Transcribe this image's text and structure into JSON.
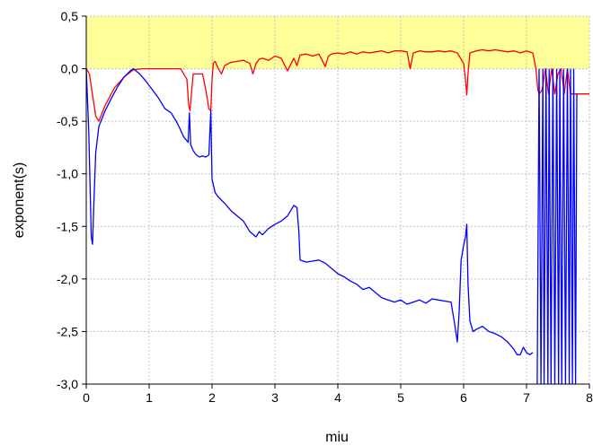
{
  "chart_data": {
    "type": "line",
    "title": "",
    "xlabel": "miu",
    "ylabel": "exponent(s)",
    "xlim": [
      0,
      8
    ],
    "ylim": [
      -3.0,
      0.5
    ],
    "xticks": [
      0,
      1,
      2,
      3,
      4,
      5,
      6,
      7,
      8
    ],
    "xtick_labels": [
      "0",
      "1",
      "2",
      "3",
      "4",
      "5",
      "6",
      "7",
      "8"
    ],
    "yticks": [
      0.5,
      0.0,
      -0.5,
      -1.0,
      -1.5,
      -2.0,
      -2.5,
      -3.0
    ],
    "ytick_labels": [
      "0,5",
      "0,0",
      "-0,5",
      "-1,0",
      "-1,5",
      "-2,0",
      "-2,5",
      "-3,0"
    ],
    "grid": true,
    "shaded_band": {
      "y_from": 0.0,
      "y_to": 0.5,
      "color": "#ffff99"
    },
    "colors": {
      "series_red": "#ff0000",
      "series_blue": "#0000ff",
      "grid": "#c0c0c0",
      "band": "#ffff99"
    },
    "series": [
      {
        "color": "#ff0000",
        "x": [
          0.0,
          0.05,
          0.1,
          0.15,
          0.2,
          0.3,
          0.45,
          0.6,
          0.75,
          0.9,
          1.1,
          1.3,
          1.5,
          1.6,
          1.63,
          1.65,
          1.67,
          1.7,
          1.85,
          1.9,
          1.95,
          1.98,
          2.0,
          2.02,
          2.05,
          2.1,
          2.15,
          2.2,
          2.3,
          2.4,
          2.5,
          2.6,
          2.65,
          2.7,
          2.75,
          2.8,
          2.9,
          3.0,
          3.1,
          3.2,
          3.3,
          3.35,
          3.4,
          3.5,
          3.6,
          3.7,
          3.8,
          3.85,
          3.9,
          4.0,
          4.1,
          4.2,
          4.3,
          4.4,
          4.5,
          4.6,
          4.7,
          4.8,
          4.9,
          5.0,
          5.1,
          5.15,
          5.2,
          5.3,
          5.4,
          5.5,
          5.6,
          5.7,
          5.8,
          5.9,
          6.0,
          6.03,
          6.05,
          6.07,
          6.1,
          6.2,
          6.3,
          6.4,
          6.5,
          6.6,
          6.7,
          6.8,
          6.9,
          7.0,
          7.1,
          7.15,
          7.18,
          7.2,
          7.25,
          7.3,
          7.35,
          7.4,
          7.45,
          7.5,
          7.55,
          7.6,
          7.65,
          7.7,
          7.75,
          7.8,
          7.9,
          8.0
        ],
        "y": [
          0.0,
          -0.05,
          -0.25,
          -0.45,
          -0.5,
          -0.35,
          -0.18,
          -0.08,
          -0.01,
          0.0,
          0.0,
          0.0,
          0.0,
          -0.1,
          -0.35,
          -0.4,
          -0.25,
          -0.05,
          -0.05,
          -0.2,
          -0.38,
          -0.4,
          -0.1,
          0.05,
          0.07,
          0.0,
          -0.05,
          0.03,
          0.06,
          0.07,
          0.08,
          0.05,
          -0.05,
          0.05,
          0.09,
          0.1,
          0.08,
          0.12,
          0.1,
          -0.02,
          0.1,
          0.03,
          0.13,
          0.14,
          0.12,
          0.14,
          0.02,
          0.12,
          0.14,
          0.15,
          0.14,
          0.16,
          0.14,
          0.16,
          0.15,
          0.16,
          0.17,
          0.15,
          0.17,
          0.17,
          0.16,
          0.0,
          0.15,
          0.17,
          0.16,
          0.16,
          0.17,
          0.16,
          0.17,
          0.15,
          0.05,
          -0.1,
          -0.25,
          -0.05,
          0.15,
          0.17,
          0.18,
          0.17,
          0.18,
          0.17,
          0.16,
          0.17,
          0.15,
          0.17,
          0.15,
          0.0,
          -0.2,
          -0.24,
          -0.2,
          0.0,
          -0.24,
          0.0,
          -0.24,
          -0.05,
          0.0,
          -0.24,
          0.0,
          -0.24,
          -0.24,
          -0.24,
          -0.24,
          -0.24
        ]
      },
      {
        "color": "#0000ff",
        "x": [
          0.0,
          0.04,
          0.08,
          0.1,
          0.12,
          0.15,
          0.2,
          0.3,
          0.4,
          0.5,
          0.6,
          0.7,
          0.75,
          0.85,
          0.95,
          1.05,
          1.15,
          1.25,
          1.35,
          1.45,
          1.55,
          1.62,
          1.64,
          1.66,
          1.7,
          1.75,
          1.8,
          1.85,
          1.9,
          1.95,
          1.98,
          2.0,
          2.05,
          2.1,
          2.2,
          2.3,
          2.4,
          2.5,
          2.6,
          2.7,
          2.75,
          2.8,
          2.9,
          3.0,
          3.1,
          3.2,
          3.3,
          3.35,
          3.38,
          3.4,
          3.5,
          3.6,
          3.7,
          3.8,
          3.9,
          4.0,
          4.1,
          4.2,
          4.3,
          4.4,
          4.5,
          4.6,
          4.7,
          4.8,
          4.9,
          5.0,
          5.1,
          5.2,
          5.3,
          5.4,
          5.5,
          5.6,
          5.7,
          5.8,
          5.85,
          5.9,
          5.93,
          5.96,
          6.0,
          6.03,
          6.05,
          6.07,
          6.1,
          6.15,
          6.2,
          6.3,
          6.4,
          6.5,
          6.6,
          6.7,
          6.8,
          6.85,
          6.9,
          6.95,
          7.0,
          7.05,
          7.1
        ],
        "y": [
          0.0,
          -0.6,
          -1.6,
          -1.67,
          -1.3,
          -0.8,
          -0.55,
          -0.4,
          -0.28,
          -0.17,
          -0.08,
          -0.02,
          0.0,
          -0.05,
          -0.12,
          -0.2,
          -0.28,
          -0.38,
          -0.42,
          -0.52,
          -0.65,
          -0.7,
          -0.42,
          -0.72,
          -0.78,
          -0.82,
          -0.84,
          -0.83,
          -0.84,
          -0.82,
          -0.4,
          -1.05,
          -1.18,
          -1.22,
          -1.28,
          -1.35,
          -1.4,
          -1.45,
          -1.55,
          -1.6,
          -1.55,
          -1.58,
          -1.52,
          -1.48,
          -1.45,
          -1.4,
          -1.3,
          -1.32,
          -1.55,
          -1.82,
          -1.84,
          -1.83,
          -1.82,
          -1.85,
          -1.9,
          -1.95,
          -1.98,
          -2.02,
          -2.05,
          -2.1,
          -2.08,
          -2.13,
          -2.18,
          -2.2,
          -2.22,
          -2.2,
          -2.24,
          -2.22,
          -2.2,
          -2.23,
          -2.19,
          -2.2,
          -2.21,
          -2.22,
          -2.4,
          -2.6,
          -2.3,
          -1.82,
          -1.68,
          -1.6,
          -1.48,
          -2.05,
          -2.4,
          -2.5,
          -2.48,
          -2.45,
          -2.5,
          -2.52,
          -2.55,
          -2.6,
          -2.67,
          -2.72,
          -2.72,
          -2.65,
          -2.7,
          -2.72,
          -2.7
        ]
      }
    ],
    "oscillation": {
      "color": "#0000ff",
      "x": [
        7.17,
        7.2,
        7.23,
        7.26,
        7.28,
        7.31,
        7.34,
        7.36,
        7.39,
        7.42,
        7.45,
        7.48,
        7.51,
        7.53,
        7.56,
        7.59,
        7.62,
        7.65,
        7.68,
        7.7,
        7.73,
        7.75,
        7.78
      ],
      "top": 0.0,
      "bottom": -3.0,
      "end_level": -0.24
    }
  }
}
